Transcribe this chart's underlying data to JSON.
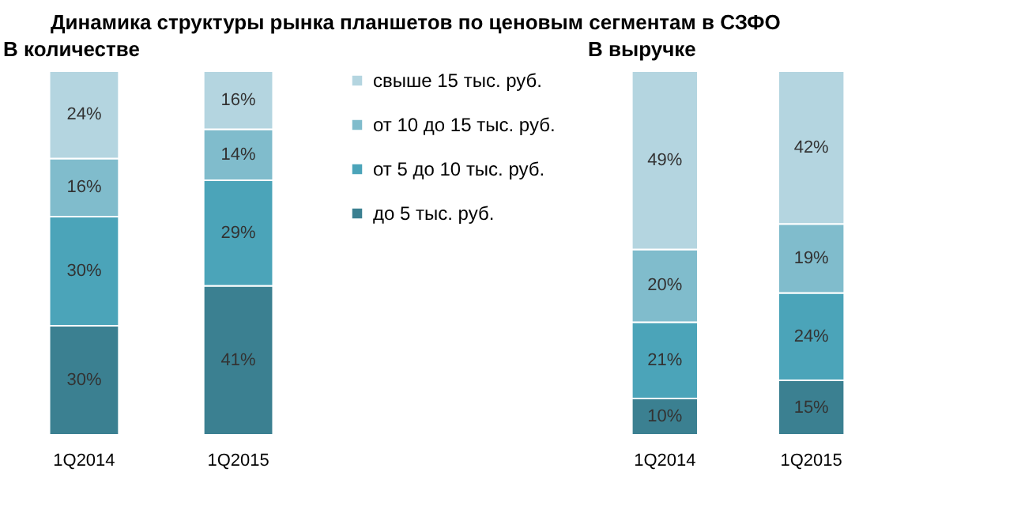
{
  "chart_data": [
    {
      "type": "bar",
      "title": "Динамика структуры рынка планшетов по ценовым сегментам в СЗФО",
      "subtitle": "В количестве",
      "categories": [
        "1Q2014",
        "1Q2015"
      ],
      "stacked": true,
      "tick_labels": "x",
      "legend": "right",
      "grid": false,
      "series": [
        {
          "name": "до 5 тыс. руб.",
          "color": "#3b8091",
          "values": [
            30,
            41
          ],
          "value_labels": [
            "30%",
            "41%"
          ]
        },
        {
          "name": "от 5 до 10 тыс. руб.",
          "color": "#4ba4b9",
          "values": [
            30,
            29
          ],
          "value_labels": [
            "30%",
            "29%"
          ]
        },
        {
          "name": "от 10 до 15 тыс. руб.",
          "color": "#80bccc",
          "values": [
            16,
            14
          ],
          "value_labels": [
            "16%",
            "14%"
          ]
        },
        {
          "name": "свыше 15 тыс. руб.",
          "color": "#b4d5e0",
          "values": [
            24,
            16
          ],
          "value_labels": [
            "24%",
            "16%"
          ]
        }
      ]
    },
    {
      "type": "bar",
      "subtitle": "В выручке",
      "categories": [
        "1Q2014",
        "1Q2015"
      ],
      "stacked": true,
      "tick_labels": "x",
      "grid": false,
      "series": [
        {
          "color": "#3b8091",
          "values": [
            10,
            15
          ],
          "value_labels": [
            "10%",
            "15%"
          ]
        },
        {
          "color": "#4ba4b9",
          "values": [
            21,
            24
          ],
          "value_labels": [
            "21%",
            "24%"
          ]
        },
        {
          "color": "#80bccc",
          "values": [
            20,
            19
          ],
          "value_labels": [
            "20%",
            "19%"
          ]
        },
        {
          "color": "#b4d5e0",
          "values": [
            49,
            42
          ],
          "value_labels": [
            "49%",
            "42%"
          ]
        }
      ]
    }
  ]
}
